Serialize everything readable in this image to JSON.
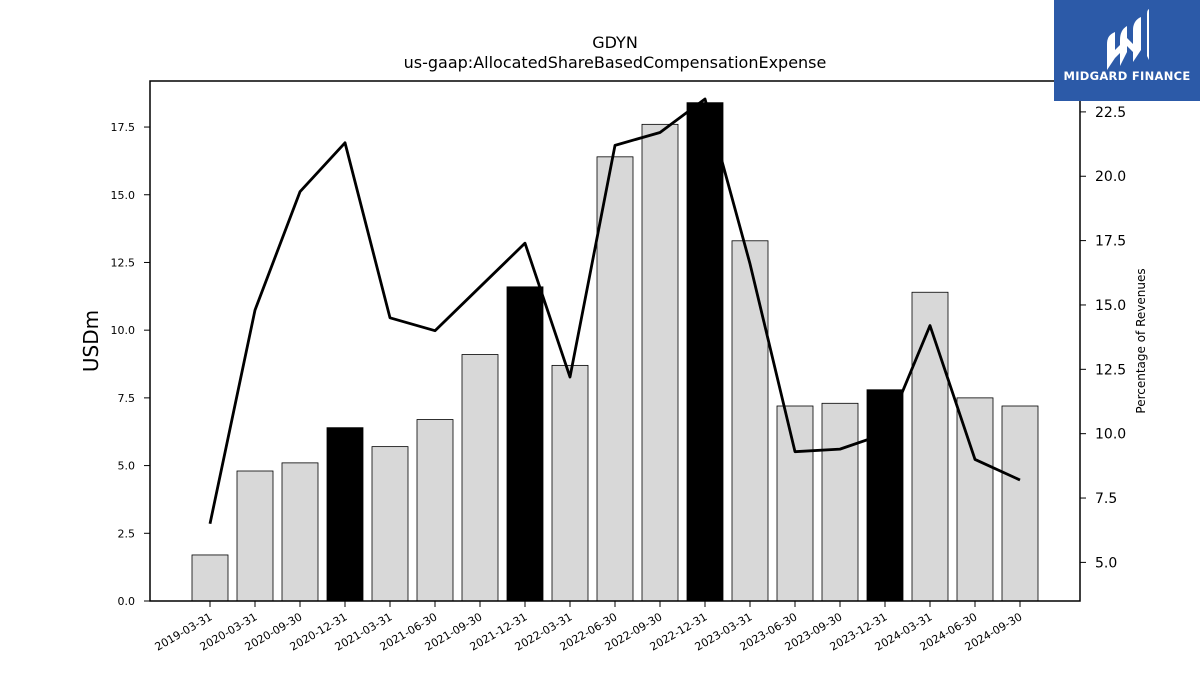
{
  "chart_data": {
    "type": "bar",
    "title": "GDYN",
    "subtitle": "us-gaap:AllocatedShareBasedCompensationExpense",
    "ylabel": "USDm",
    "y2label": "Percentage of Revenues",
    "ylim": [
      0,
      19.2
    ],
    "y2lim": [
      3.5,
      23.7
    ],
    "yticks": [
      0.0,
      2.5,
      5.0,
      7.5,
      10.0,
      12.5,
      15.0,
      17.5
    ],
    "y2ticks": [
      5.0,
      7.5,
      10.0,
      12.5,
      15.0,
      17.5,
      20.0,
      22.5
    ],
    "grid": false,
    "categories": [
      "2019-03-31",
      "2020-03-31",
      "2020-09-30",
      "2020-12-31",
      "2021-03-31",
      "2021-06-30",
      "2021-09-30",
      "2021-12-31",
      "2022-03-31",
      "2022-06-30",
      "2022-09-30",
      "2022-12-31",
      "2023-03-31",
      "2023-06-30",
      "2023-09-30",
      "2023-12-31",
      "2024-03-31",
      "2024-06-30",
      "2024-09-30"
    ],
    "series": [
      {
        "kind": "bar",
        "axis": "left",
        "values": [
          1.7,
          4.8,
          5.1,
          6.4,
          5.7,
          6.7,
          9.1,
          11.6,
          8.7,
          16.4,
          17.6,
          18.4,
          13.3,
          7.2,
          7.3,
          7.8,
          11.4,
          7.5,
          7.2
        ],
        "annual_flags": [
          false,
          false,
          false,
          true,
          false,
          false,
          false,
          true,
          false,
          false,
          false,
          true,
          false,
          false,
          false,
          true,
          false,
          false,
          false
        ],
        "color_quarter": "#d8d8d8",
        "color_annual": "#000000"
      },
      {
        "kind": "line",
        "axis": "right",
        "values": [
          6.5,
          14.8,
          19.4,
          21.3,
          14.5,
          14.0,
          15.7,
          17.4,
          12.2,
          21.2,
          21.7,
          23.0,
          16.6,
          9.3,
          9.4,
          10.0,
          14.2,
          9.0,
          8.2
        ],
        "color": "#000000"
      }
    ]
  },
  "logo": {
    "text": "MIDGARD FINANCE",
    "color": "#2c5aa8"
  }
}
